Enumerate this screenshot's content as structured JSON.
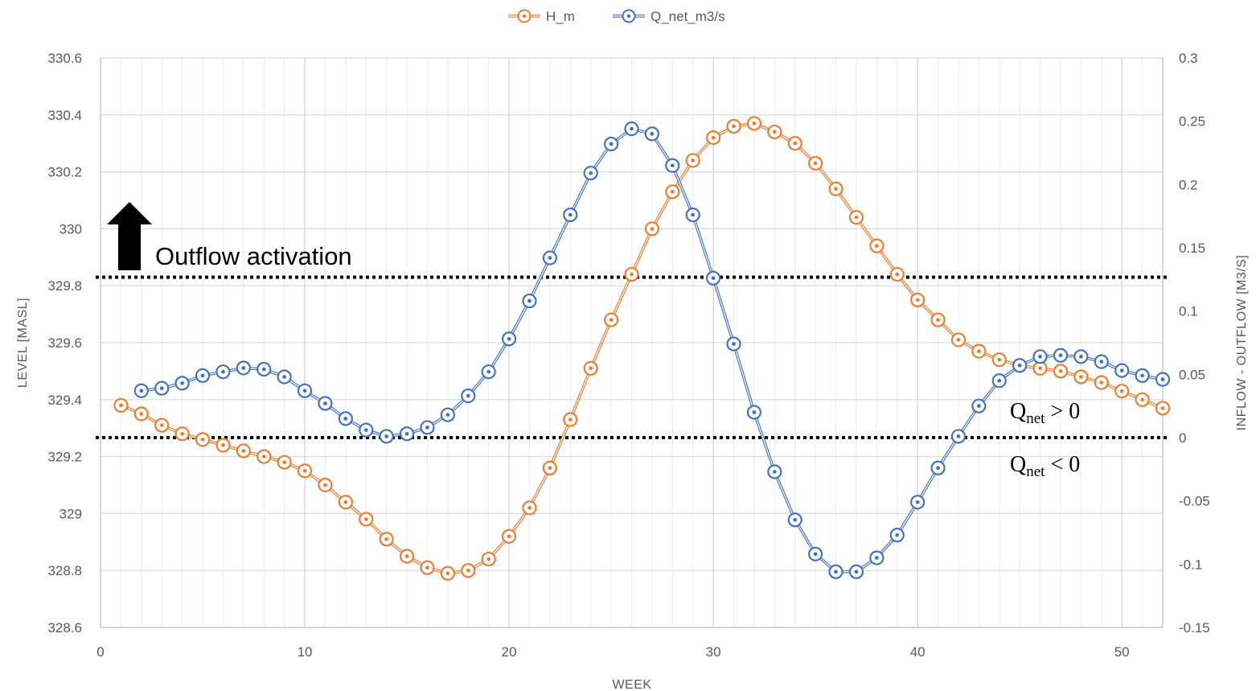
{
  "chart_data": {
    "type": "line",
    "xlabel": "WEEK",
    "ylabel": "LEVEL [MASL]",
    "y2label": "INFLOW - OUTFLOW [M3/S]",
    "xlim": [
      0,
      52
    ],
    "xticks": [
      0,
      10,
      20,
      30,
      40,
      50
    ],
    "ylim": [
      328.6,
      330.6
    ],
    "yticks": [
      328.6,
      328.8,
      329,
      329.2,
      329.4,
      329.6,
      329.8,
      330,
      330.2,
      330.4,
      330.6
    ],
    "ytick_labels": [
      "328.6",
      "328.8",
      "329",
      "329.2",
      "329.4",
      "329.6",
      "329.8",
      "330",
      "330.2",
      "330.4",
      "330.6"
    ],
    "y2lim": [
      -0.15,
      0.3
    ],
    "y2ticks": [
      -0.15,
      -0.1,
      -0.05,
      0,
      0.05,
      0.1,
      0.15,
      0.2,
      0.25,
      0.3
    ],
    "y2tick_labels": [
      "-0.15",
      "-0.1",
      "-0.05",
      "0",
      "0.05",
      "0.1",
      "0.15",
      "0.2",
      "0.25",
      "0.3"
    ],
    "grid": true,
    "legend": "top-center",
    "series": [
      {
        "name": "H_m",
        "axis": "left",
        "color": "#ED7D31",
        "x": [
          1,
          2,
          3,
          4,
          5,
          6,
          7,
          8,
          9,
          10,
          11,
          12,
          13,
          14,
          15,
          16,
          17,
          18,
          19,
          20,
          21,
          22,
          23,
          24,
          25,
          26,
          27,
          28,
          29,
          30,
          31,
          32,
          33,
          34,
          35,
          36,
          37,
          38,
          39,
          40,
          41,
          42,
          43,
          44,
          45,
          46,
          47,
          48,
          49,
          50,
          51,
          52
        ],
        "values": [
          329.38,
          329.35,
          329.31,
          329.28,
          329.26,
          329.24,
          329.22,
          329.2,
          329.18,
          329.15,
          329.1,
          329.04,
          328.98,
          328.91,
          328.85,
          328.81,
          328.79,
          328.8,
          328.84,
          328.92,
          329.02,
          329.16,
          329.33,
          329.51,
          329.68,
          329.84,
          330.0,
          330.13,
          330.24,
          330.32,
          330.36,
          330.37,
          330.34,
          330.3,
          330.23,
          330.14,
          330.04,
          329.94,
          329.84,
          329.75,
          329.68,
          329.61,
          329.57,
          329.54,
          329.52,
          329.51,
          329.5,
          329.48,
          329.46,
          329.43,
          329.4,
          329.37
        ]
      },
      {
        "name": "Q_net_m3/s",
        "axis": "right",
        "color": "#4472C4",
        "x": [
          2,
          3,
          4,
          5,
          6,
          7,
          8,
          9,
          10,
          11,
          12,
          13,
          14,
          15,
          16,
          17,
          18,
          19,
          20,
          21,
          22,
          23,
          24,
          25,
          26,
          27,
          28,
          29,
          30,
          31,
          32,
          33,
          34,
          35,
          36,
          37,
          38,
          39,
          40,
          41,
          42,
          43,
          44,
          45,
          46,
          47,
          48,
          49,
          50,
          51,
          52
        ],
        "values": [
          0.037,
          0.039,
          0.043,
          0.049,
          0.052,
          0.055,
          0.054,
          0.048,
          0.037,
          0.027,
          0.015,
          0.006,
          0.001,
          0.003,
          0.008,
          0.018,
          0.033,
          0.052,
          0.078,
          0.108,
          0.142,
          0.176,
          0.209,
          0.232,
          0.244,
          0.24,
          0.215,
          0.176,
          0.126,
          0.074,
          0.02,
          -0.027,
          -0.065,
          -0.092,
          -0.106,
          -0.106,
          -0.095,
          -0.077,
          -0.051,
          -0.024,
          0.001,
          0.025,
          0.045,
          0.057,
          0.064,
          0.065,
          0.064,
          0.06,
          0.053,
          0.049,
          0.046
        ]
      }
    ],
    "annotations": {
      "outflow_label": "Outflow activation",
      "outflow_line_y": 329.83,
      "zero_line_y2": 0,
      "q_positive": {
        "main": "Q",
        "sub": "net",
        "rest": " > 0"
      },
      "q_negative": {
        "main": "Q",
        "sub": "net",
        "rest": " < 0"
      }
    }
  }
}
